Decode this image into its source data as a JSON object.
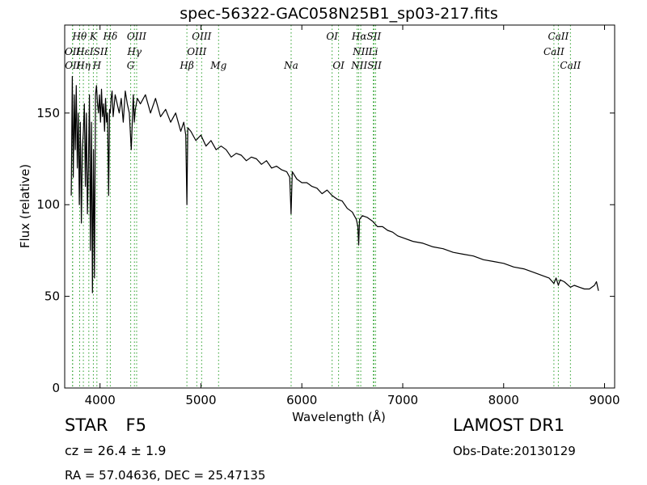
{
  "chart_data": {
    "type": "line",
    "title": "spec-56322-GAC058N25B1_sp03-217.fits",
    "xlabel": "Wavelength (Å)",
    "ylabel": "Flux (relative)",
    "xlim": [
      3650,
      9100
    ],
    "ylim": [
      0,
      198
    ],
    "xticks": [
      4000,
      5000,
      6000,
      7000,
      8000,
      9000
    ],
    "yticks": [
      0,
      50,
      100,
      150
    ],
    "grid": false,
    "line_color": "#000000",
    "marker_color": "#2ca02c",
    "series": [
      {
        "x": [
          3715,
          3725,
          3735,
          3745,
          3755,
          3765,
          3775,
          3785,
          3795,
          3805,
          3815,
          3825,
          3835,
          3845,
          3855,
          3865,
          3875,
          3885,
          3895,
          3905,
          3915,
          3925,
          3935,
          3945,
          3955,
          3965,
          3975,
          3985,
          3995,
          4005,
          4015,
          4025,
          4035,
          4045,
          4055,
          4065,
          4075,
          4085,
          4095,
          4102,
          4110,
          4120,
          4130,
          4150,
          4170,
          4190,
          4210,
          4230,
          4250,
          4270,
          4290,
          4310,
          4330,
          4340,
          4350,
          4370,
          4400,
          4450,
          4500,
          4550,
          4600,
          4650,
          4700,
          4750,
          4800,
          4830,
          4850,
          4861,
          4870,
          4900,
          4950,
          5000,
          5050,
          5100,
          5150,
          5200,
          5250,
          5300,
          5350,
          5400,
          5450,
          5500,
          5550,
          5600,
          5650,
          5700,
          5750,
          5800,
          5850,
          5880,
          5893,
          5905,
          5950,
          6000,
          6050,
          6100,
          6150,
          6200,
          6250,
          6300,
          6350,
          6400,
          6450,
          6500,
          6540,
          6555,
          6563,
          6572,
          6600,
          6650,
          6700,
          6750,
          6800,
          6850,
          6900,
          6950,
          7000,
          7100,
          7200,
          7300,
          7400,
          7500,
          7600,
          7700,
          7800,
          7900,
          8000,
          8100,
          8200,
          8300,
          8400,
          8450,
          8498,
          8520,
          8542,
          8560,
          8600,
          8662,
          8700,
          8750,
          8800,
          8850,
          8900,
          8920,
          8940
        ],
        "y": [
          105,
          170,
          115,
          160,
          130,
          165,
          120,
          150,
          100,
          145,
          90,
          130,
          140,
          155,
          110,
          150,
          95,
          120,
          160,
          75,
          145,
          52,
          130,
          60,
          160,
          165,
          155,
          150,
          160,
          145,
          163,
          148,
          155,
          140,
          158,
          145,
          150,
          105,
          152,
          150,
          158,
          162,
          148,
          160,
          155,
          150,
          158,
          145,
          162,
          155,
          150,
          130,
          160,
          145,
          152,
          158,
          155,
          160,
          150,
          158,
          148,
          152,
          145,
          150,
          140,
          145,
          138,
          100,
          142,
          140,
          135,
          138,
          132,
          135,
          130,
          132,
          130,
          126,
          128,
          127,
          124,
          126,
          125,
          122,
          124,
          120,
          121,
          119,
          118,
          115,
          95,
          118,
          114,
          112,
          112,
          110,
          109,
          106,
          108,
          105,
          103,
          102,
          98,
          96,
          92,
          88,
          78,
          92,
          94,
          93,
          91,
          88,
          88,
          86,
          85,
          83,
          82,
          80,
          79,
          77,
          76,
          74,
          73,
          72,
          70,
          69,
          68,
          66,
          65,
          63,
          61,
          60,
          57,
          60,
          56,
          59,
          58,
          55,
          56,
          55,
          54,
          54,
          56,
          58,
          53
        ]
      }
    ],
    "lines": [
      {
        "x": 3727,
        "label": "OII"
      },
      {
        "x": 3729,
        "label": "OII"
      },
      {
        "x": 3798,
        "label": "Hη"
      },
      {
        "x": 3835,
        "label": "Hη"
      },
      {
        "x": 3889,
        "label": "Hζ"
      },
      {
        "x": 3934,
        "label": "K"
      },
      {
        "x": 3969,
        "label": "H"
      },
      {
        "x": 4070,
        "label": "SII"
      },
      {
        "x": 4102,
        "label": "Hδ"
      },
      {
        "x": 4304,
        "label": "G"
      },
      {
        "x": 4341,
        "label": "Hγ"
      },
      {
        "x": 4363,
        "label": "OIII"
      },
      {
        "x": 4861,
        "label": "Hβ"
      },
      {
        "x": 4959,
        "label": "OIII"
      },
      {
        "x": 5007,
        "label": "OIII"
      },
      {
        "x": 5175,
        "label": "Mg"
      },
      {
        "x": 5894,
        "label": "Na"
      },
      {
        "x": 6300,
        "label": "OI"
      },
      {
        "x": 6364,
        "label": "OI"
      },
      {
        "x": 6548,
        "label": "NII"
      },
      {
        "x": 6563,
        "label": "Hα"
      },
      {
        "x": 6584,
        "label": "NII"
      },
      {
        "x": 6708,
        "label": "Li"
      },
      {
        "x": 6716,
        "label": "SII"
      },
      {
        "x": 6731,
        "label": "SII"
      },
      {
        "x": 8498,
        "label": "CaII"
      },
      {
        "x": 8542,
        "label": "CaII"
      },
      {
        "x": 8662,
        "label": "CaII"
      }
    ],
    "line_labels": [
      {
        "text": "Hθ",
        "x": 3797,
        "row": 0
      },
      {
        "text": "K",
        "x": 3934,
        "row": 0
      },
      {
        "text": "Hδ",
        "x": 4102,
        "row": 0
      },
      {
        "text": "OIII",
        "x": 4363,
        "row": 0
      },
      {
        "text": "OIII",
        "x": 5007,
        "row": 0
      },
      {
        "text": "OI",
        "x": 6300,
        "row": 0
      },
      {
        "text": "HαSII",
        "x": 6640,
        "row": 0
      },
      {
        "text": "CaII",
        "x": 8542,
        "row": 0
      },
      {
        "text": "OII",
        "x": 3727,
        "row": 1
      },
      {
        "text": "HεISII",
        "x": 3920,
        "row": 1
      },
      {
        "text": "Hγ",
        "x": 4341,
        "row": 1
      },
      {
        "text": "OIII",
        "x": 4959,
        "row": 1
      },
      {
        "text": "NII",
        "x": 6584,
        "row": 1
      },
      {
        "text": "Li",
        "x": 6708,
        "row": 1
      },
      {
        "text": "CaII",
        "x": 8498,
        "row": 1
      },
      {
        "text": "OII",
        "x": 3729,
        "row": 2
      },
      {
        "text": "Hη",
        "x": 3835,
        "row": 2
      },
      {
        "text": "H",
        "x": 3969,
        "row": 2
      },
      {
        "text": "G",
        "x": 4304,
        "row": 2
      },
      {
        "text": "Hβ",
        "x": 4861,
        "row": 2
      },
      {
        "text": "Mg",
        "x": 5175,
        "row": 2
      },
      {
        "text": "Na",
        "x": 5894,
        "row": 2
      },
      {
        "text": "OI",
        "x": 6364,
        "row": 2
      },
      {
        "text": "NIISII",
        "x": 6640,
        "row": 2
      },
      {
        "text": "CaII",
        "x": 8662,
        "row": 2
      }
    ]
  },
  "info": {
    "class": "STAR",
    "subclass": "F5",
    "survey": "LAMOST DR1",
    "cz": "cz = 26.4  ± 1.9",
    "obs_date": "Obs-Date:20130129",
    "coords": "RA = 57.04636, DEC = 25.47135"
  }
}
